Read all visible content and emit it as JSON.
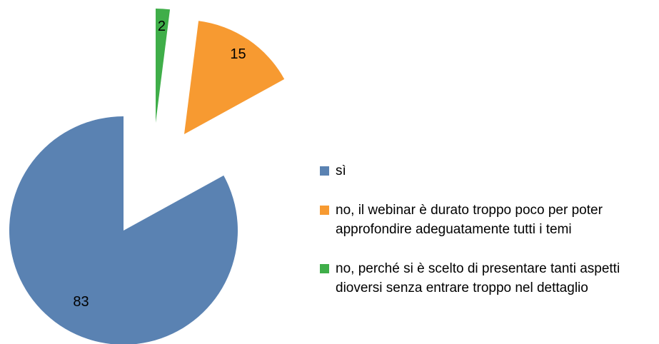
{
  "chart_data": {
    "type": "pie",
    "categories": [
      "sì",
      "no, il webinar è durato troppo poco per poter approfondire adeguatamente tutti i temi",
      "no, perché si è scelto di presentare tanti aspetti dioversi senza entrare troppo nel dettaglio"
    ],
    "values": [
      83,
      15,
      2
    ],
    "colors": [
      "#5a82b2",
      "#f79a31",
      "#3fae49"
    ],
    "legend": "right"
  }
}
